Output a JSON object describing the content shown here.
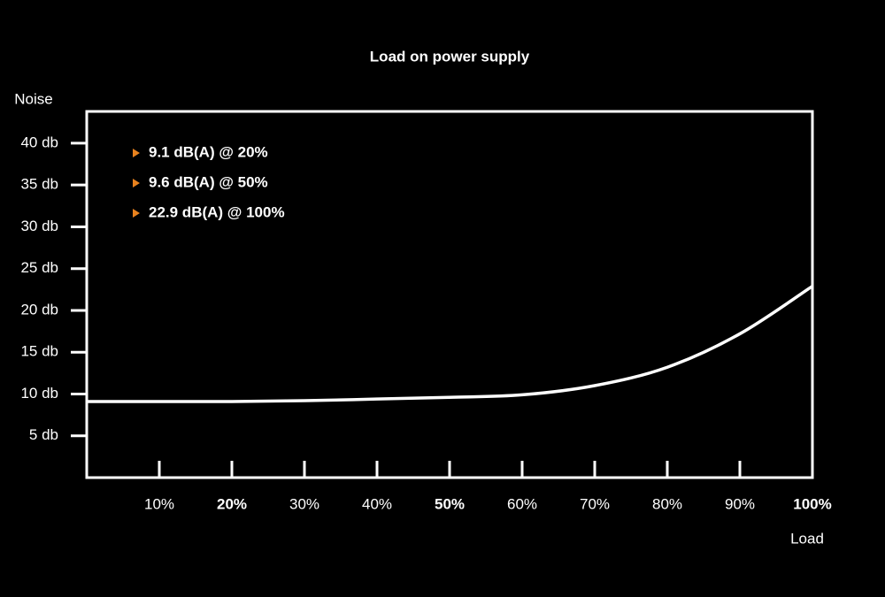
{
  "chart_data": {
    "type": "line",
    "title": "Load on power supply",
    "x_label": "Load",
    "y_label": "Noise",
    "x": [
      0,
      10,
      20,
      30,
      40,
      50,
      60,
      70,
      80,
      90,
      100
    ],
    "series": [
      {
        "name": "Noise",
        "color": "#ffffff",
        "values": [
          9.1,
          9.1,
          9.1,
          9.2,
          9.4,
          9.6,
          9.9,
          11.0,
          13.2,
          17.2,
          22.9
        ]
      }
    ],
    "xlim": [
      0,
      100
    ],
    "ylim": [
      0,
      43.8
    ],
    "xticks": [
      {
        "value": 10,
        "label": "10%"
      },
      {
        "value": 20,
        "label": "20%",
        "bold": true
      },
      {
        "value": 30,
        "label": "30%"
      },
      {
        "value": 40,
        "label": "40%"
      },
      {
        "value": 50,
        "label": "50%",
        "bold": true
      },
      {
        "value": 60,
        "label": "60%"
      },
      {
        "value": 70,
        "label": "70%"
      },
      {
        "value": 80,
        "label": "80%"
      },
      {
        "value": 90,
        "label": "90%"
      },
      {
        "value": 100,
        "label": "100%",
        "bold": true
      }
    ],
    "yticks": [
      {
        "value": 5,
        "label": "5 db"
      },
      {
        "value": 10,
        "label": "10 db"
      },
      {
        "value": 15,
        "label": "15 db"
      },
      {
        "value": 20,
        "label": "20 db"
      },
      {
        "value": 25,
        "label": "25 db"
      },
      {
        "value": 30,
        "label": "30 db"
      },
      {
        "value": 35,
        "label": "35 db"
      },
      {
        "value": 40,
        "label": "40 db"
      }
    ],
    "annotations": [
      "9.1 dB(A) @ 20%",
      "9.6 dB(A) @ 50%",
      "22.9 dB(A) @ 100%"
    ],
    "annotation_marker_color": "#e8821e"
  }
}
